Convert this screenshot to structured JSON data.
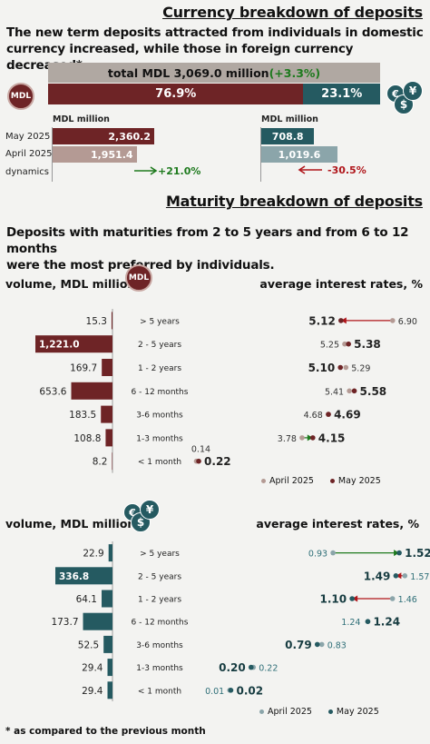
{
  "currency": {
    "title": "Currency breakdown of deposits",
    "subtitle_line1": "The new term deposits attracted from individuals in domestic",
    "subtitle_line2": "currency increased, while those in foreign currency decreased*.",
    "total_label": "total MDL 3,069.0 million ",
    "total_change": "(+3.3%)",
    "share_mdl": "76.9%",
    "share_fx": "23.1%",
    "share_mdl_value": 76.9,
    "mdl_badge": "MDL",
    "fx_badge_glyphs": [
      "€",
      "$",
      "¥"
    ],
    "unit_left": "MDL million",
    "unit_right": "MDL million",
    "row_labels": [
      "May 2025",
      "April 2025",
      "dynamics"
    ],
    "mdl_may": "2,360.2",
    "mdl_april": "1,951.4",
    "mdl_may_value": 2360.2,
    "mdl_april_value": 1951.4,
    "mdl_dynamics": "+21.0%",
    "fx_may": "708.8",
    "fx_april": "1,019.6",
    "fx_may_value": 708.8,
    "fx_april_value": 1019.6,
    "fx_dynamics": "-30.5%",
    "colors": {
      "mdl_dark": "#6e2426",
      "mdl_light": "#b49a94",
      "fx_dark": "#255a61",
      "fx_light": "#8ba5aa",
      "green": "#1e7a1e",
      "red": "#b0161b"
    }
  },
  "maturity": {
    "title": "Maturity breakdown of deposits",
    "subtitle_line1": "Deposits with maturities from 2 to 5 years and from 6 to 12 months",
    "subtitle_line2": "were the most preferred by individuals.",
    "volume_label": "volume, MDL million",
    "rates_label": "average interest rates, %",
    "legend_april": "April 2025",
    "legend_may": "May 2025"
  },
  "chart_data": [
    {
      "type": "bar",
      "title": "volume, MDL million",
      "currency": "MDL",
      "categories": [
        "> 5 years",
        "2 - 5 years",
        "1 - 2 years",
        "6 - 12 months",
        "3-6 months",
        "1-3 months",
        "< 1 month"
      ],
      "values": [
        15.3,
        1221.0,
        169.7,
        653.6,
        183.5,
        108.8,
        8.2
      ],
      "labels": [
        "15.3",
        "1,221.0",
        "169.7",
        "653.6",
        "183.5",
        "108.8",
        "8.2"
      ]
    },
    {
      "type": "scatter",
      "title": "average interest rates, %",
      "currency": "MDL",
      "categories": [
        "> 5 years",
        "2 - 5 years",
        "1 - 2 years",
        "6 - 12 months",
        "3-6 months",
        "1-3 months",
        "< 1 month"
      ],
      "series": [
        {
          "name": "April 2025",
          "values": [
            6.9,
            5.25,
            5.29,
            5.41,
            4.68,
            3.78,
            0.14
          ],
          "labels": [
            "6.90",
            "5.25",
            "5.29",
            "5.41",
            "4.68",
            "3.78",
            "0.14"
          ]
        },
        {
          "name": "May 2025",
          "values": [
            5.12,
            5.38,
            5.1,
            5.58,
            4.69,
            4.15,
            0.22
          ],
          "labels": [
            "5.12",
            "5.38",
            "5.10",
            "5.58",
            "4.69",
            "4.15",
            "0.22"
          ]
        }
      ]
    },
    {
      "type": "bar",
      "title": "volume, MDL million",
      "currency": "foreign",
      "categories": [
        "> 5 years",
        "2 - 5 years",
        "1 - 2 years",
        "6 - 12 months",
        "3-6 months",
        "1-3 months",
        "< 1 month"
      ],
      "values": [
        22.9,
        336.8,
        64.1,
        173.7,
        52.5,
        29.4,
        29.4
      ],
      "labels": [
        "22.9",
        "336.8",
        "64.1",
        "173.7",
        "52.5",
        "29.4",
        "29.4"
      ]
    },
    {
      "type": "scatter",
      "title": "average interest rates, %",
      "currency": "foreign",
      "categories": [
        "> 5 years",
        "2 - 5 years",
        "1 - 2 years",
        "6 - 12 months",
        "3-6 months",
        "1-3 months",
        "< 1 month"
      ],
      "series": [
        {
          "name": "April 2025",
          "values": [
            0.93,
            1.57,
            1.46,
            1.24,
            0.83,
            0.22,
            0.01
          ],
          "labels": [
            "0.93",
            "1.57",
            "1.46",
            "1.24",
            "0.83",
            "0.22",
            "0.01"
          ]
        },
        {
          "name": "May 2025",
          "values": [
            1.52,
            1.49,
            1.1,
            1.24,
            0.79,
            0.2,
            0.02
          ],
          "labels": [
            "1.52",
            "1.49",
            "1.10",
            "1.24",
            "0.79",
            "0.20",
            "0.02"
          ]
        }
      ]
    }
  ],
  "footnote": "* as compared to the previous month"
}
